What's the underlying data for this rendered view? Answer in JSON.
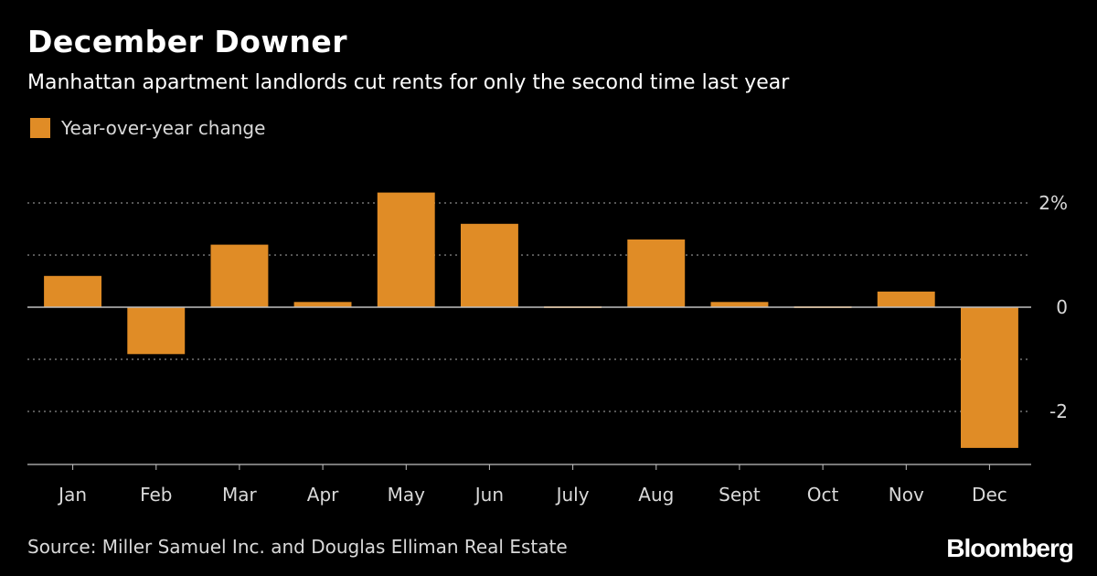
{
  "header": {
    "title": "December Downer",
    "subtitle": "Manhattan apartment landlords cut rents for only the second time last year"
  },
  "legend": {
    "label": "Year-over-year change"
  },
  "footer": {
    "source": "Source: Miller Samuel Inc. and Douglas Elliman Real Estate",
    "brand": "Bloomberg"
  },
  "colors": {
    "background": "#000000",
    "bar": "#e08c26",
    "grid": "#8a8a8a",
    "axis": "#bfbfbf",
    "text": "#ffffff",
    "muted": "#d9d9d9"
  },
  "chart_data": {
    "type": "bar",
    "title": "December Downer",
    "subtitle": "Manhattan apartment landlords cut rents for only the second time last year",
    "xlabel": "",
    "ylabel": "",
    "categories": [
      "Jan",
      "Feb",
      "Mar",
      "Apr",
      "May",
      "Jun",
      "July",
      "Aug",
      "Sept",
      "Oct",
      "Nov",
      "Dec"
    ],
    "series": [
      {
        "name": "Year-over-year change",
        "values": [
          0.6,
          -0.9,
          1.2,
          0.1,
          2.2,
          1.6,
          -0.03,
          1.3,
          0.1,
          -0.03,
          0.3,
          -2.7
        ]
      }
    ],
    "ylim": [
      -3,
      2.5
    ],
    "yticks": [
      {
        "value": 2,
        "label": "2%"
      },
      {
        "value": 0,
        "label": "0"
      },
      {
        "value": -2,
        "label": "-2"
      }
    ],
    "gridlines": [
      2,
      1,
      -1,
      -2
    ],
    "grid": true,
    "legend_position": "top-left"
  }
}
